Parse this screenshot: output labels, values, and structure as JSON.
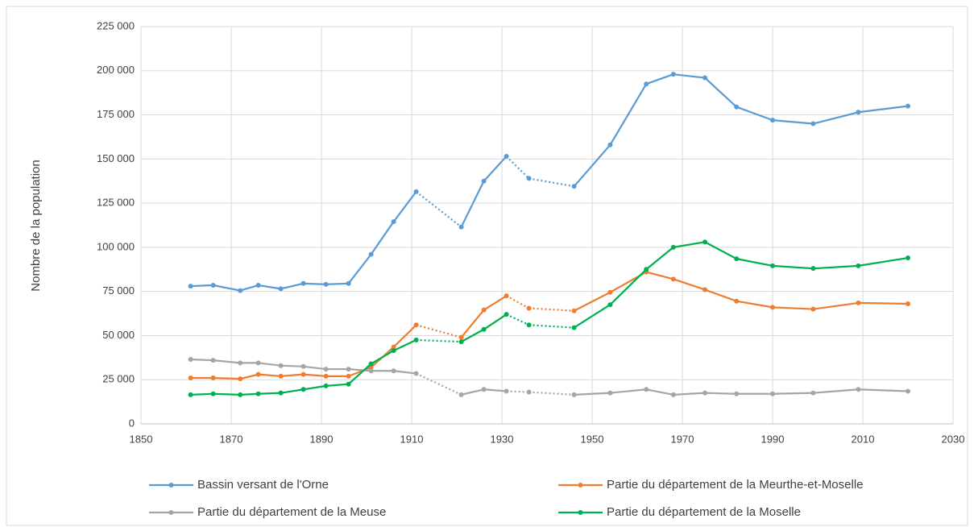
{
  "chart_data": {
    "type": "line",
    "y_label": "Nombre de la population",
    "x": [
      1861,
      1866,
      1872,
      1876,
      1881,
      1886,
      1891,
      1896,
      1901,
      1906,
      1911,
      1921,
      1926,
      1931,
      1936,
      1946,
      1954,
      1962,
      1968,
      1975,
      1982,
      1990,
      1999,
      2009,
      2020
    ],
    "dotted_after": [
      10,
      13,
      14
    ],
    "series": [
      {
        "name": "Bassin versant de l'Orne",
        "color": "#5b9bd5",
        "values": [
          78000,
          78500,
          75500,
          78500,
          76500,
          79500,
          79000,
          79500,
          96000,
          114500,
          131500,
          111500,
          137500,
          151500,
          139000,
          134500,
          158000,
          192500,
          198000,
          196000,
          179500,
          172000,
          170000,
          176500,
          180000
        ]
      },
      {
        "name": "Partie du département de la Meurthe-et-Moselle",
        "color": "#ed7d31",
        "values": [
          26000,
          26000,
          25500,
          28000,
          27000,
          28000,
          27000,
          27000,
          32000,
          43500,
          56000,
          49000,
          64500,
          72500,
          65500,
          64000,
          74500,
          86000,
          82000,
          76000,
          69500,
          66000,
          65000,
          68500,
          68000
        ]
      },
      {
        "name": "Partie du département de la Meuse",
        "color": "#a5a5a5",
        "values": [
          36500,
          36000,
          34500,
          34500,
          33000,
          32500,
          31000,
          31000,
          30000,
          30000,
          28500,
          16500,
          19500,
          18500,
          18000,
          16500,
          17500,
          19500,
          16500,
          17500,
          17000,
          17000,
          17500,
          19500,
          18500
        ]
      },
      {
        "name": "Partie du département de la Moselle",
        "color": "#00b050",
        "values": [
          16500,
          17000,
          16500,
          17000,
          17500,
          19500,
          21500,
          22500,
          34000,
          41500,
          47500,
          46500,
          53500,
          62000,
          56000,
          54500,
          67500,
          87500,
          100000,
          103000,
          93500,
          89500,
          88000,
          89500,
          94000
        ]
      }
    ],
    "xlim": [
      1850,
      2030
    ],
    "xticks": [
      1850,
      1870,
      1890,
      1910,
      1930,
      1950,
      1970,
      1990,
      2010,
      2030
    ],
    "ylim": [
      0,
      225000
    ],
    "yticks": [
      0,
      {
        "value": 25000,
        "label": "25 000"
      },
      {
        "value": 50000,
        "label": "50 000"
      },
      {
        "value": 75000,
        "label": "75 000"
      },
      {
        "value": 100000,
        "label": "100 000"
      },
      {
        "value": 125000,
        "label": "125 000"
      },
      {
        "value": 150000,
        "label": "150 000"
      },
      {
        "value": 175000,
        "label": "175 000"
      },
      {
        "value": 200000,
        "label": "200 000"
      },
      {
        "value": 225000,
        "label": "225 000"
      }
    ],
    "grid": true,
    "legend": "bottom"
  }
}
